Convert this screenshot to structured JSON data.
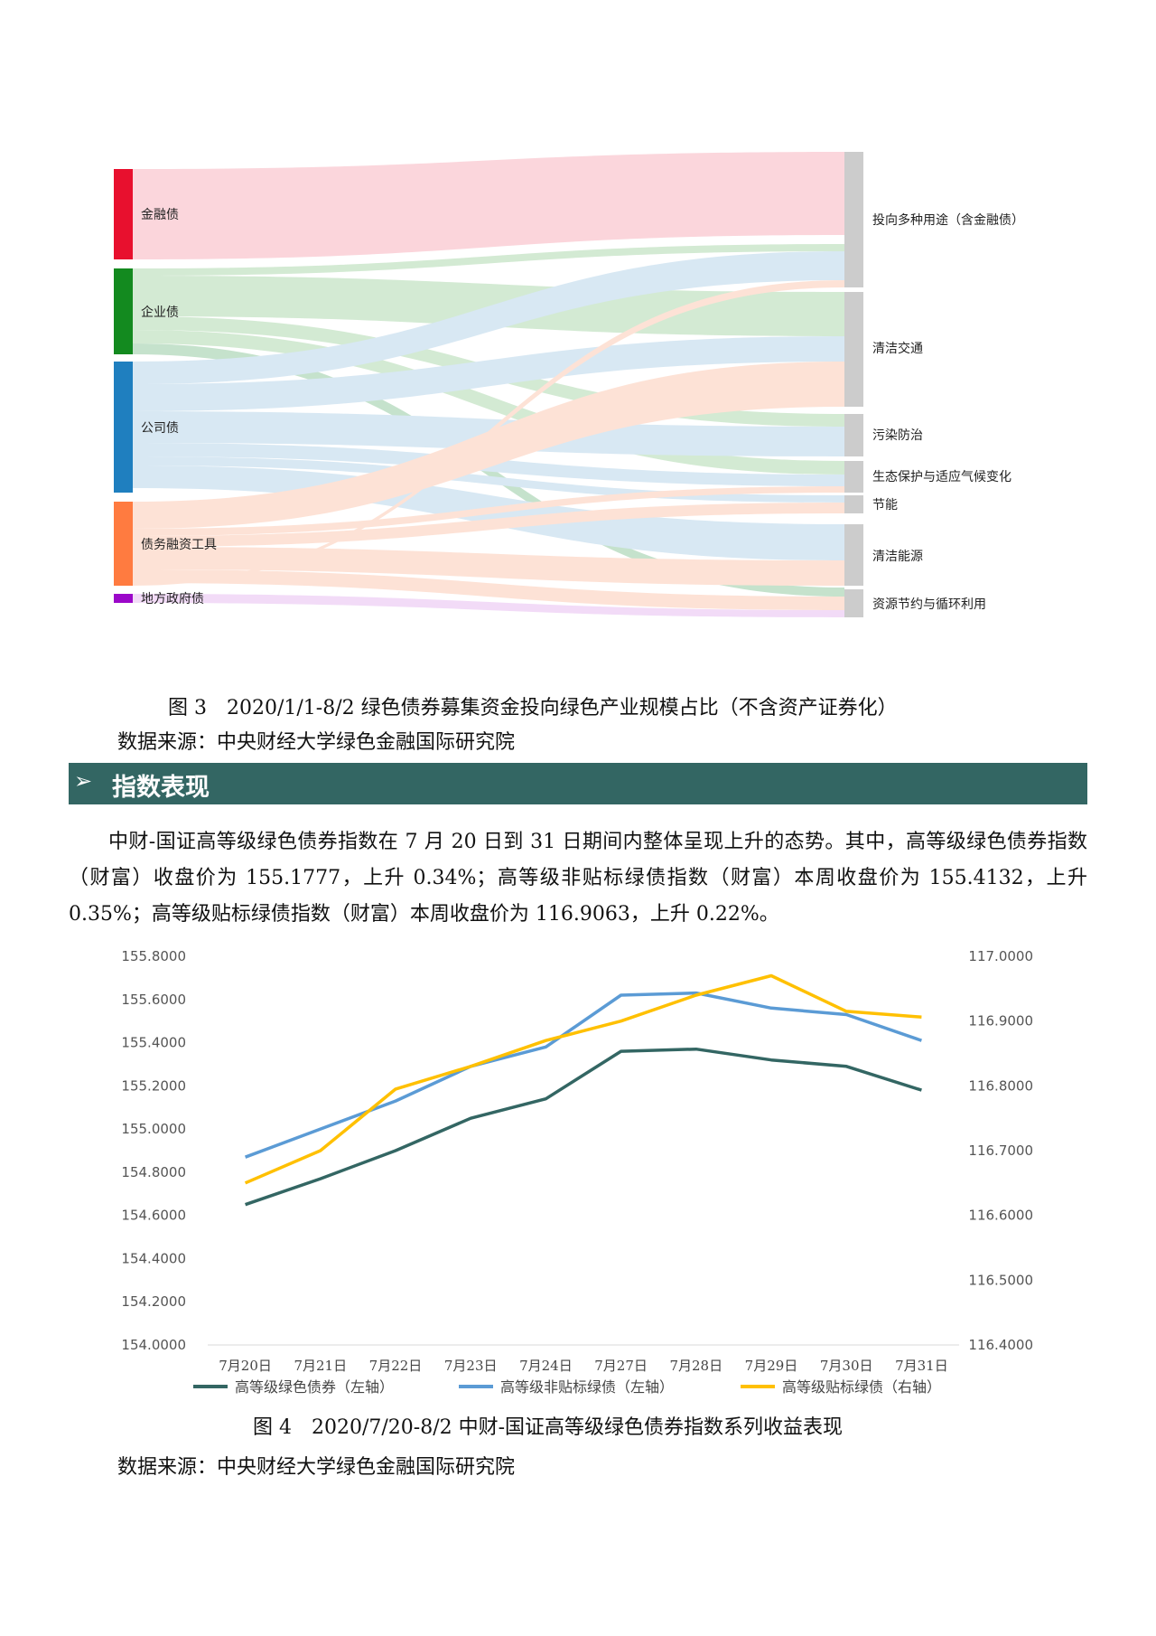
{
  "sankey": {
    "sources": [
      "金融债",
      "企业债",
      "公司债",
      "债务融资工具",
      "地方政府债"
    ],
    "targets": [
      "投向多种用途（含金融债）",
      "清洁交通",
      "污染防治",
      "生态保护与适应气候变化",
      "节能",
      "清洁能源",
      "资源节约与循环利用"
    ],
    "source_colors": [
      "#e8102e",
      "#138a1f",
      "#1f7fbf",
      "#ff7b40",
      "#9b08c9"
    ]
  },
  "fig3": {
    "caption": "图 3　2020/1/1-8/2 绿色债券募集资金投向绿色产业规模占比（不含资产证券化）",
    "source": "数据来源：中央财经大学绿色金融国际研究院"
  },
  "section": {
    "arrow": "➢",
    "title": "指数表现"
  },
  "paragraph": "中财-国证高等级绿色债券指数在 7 月 20 日到 31 日期间内整体呈现上升的态势。其中，高等级绿色债券指数（财富）收盘价为 155.1777，上升 0.34%；高等级非贴标绿债指数（财富）本周收盘价为 155.4132，上升 0.35%；高等级贴标绿债指数（财富）本周收盘价为 116.9063，上升 0.22%。",
  "chart_data": {
    "type": "line",
    "categories": [
      "7月20日",
      "7月21日",
      "7月22日",
      "7月23日",
      "7月24日",
      "7月27日",
      "7月28日",
      "7月29日",
      "7月30日",
      "7月31日"
    ],
    "y_left": {
      "ylim": [
        154.0,
        155.8
      ],
      "ticks": [
        "154.0000",
        "154.2000",
        "154.4000",
        "154.6000",
        "154.8000",
        "155.0000",
        "155.2000",
        "155.4000",
        "155.6000",
        "155.8000"
      ]
    },
    "y_right": {
      "ylim": [
        116.4,
        117.0
      ],
      "ticks": [
        "116.4000",
        "116.5000",
        "116.6000",
        "116.7000",
        "116.8000",
        "116.9000",
        "117.0000"
      ]
    },
    "series": [
      {
        "name": "高等级绿色债券（左轴）",
        "axis": "left",
        "color": "#336663",
        "values": [
          154.65,
          154.77,
          154.9,
          155.05,
          155.14,
          155.36,
          155.37,
          155.32,
          155.29,
          155.18
        ]
      },
      {
        "name": "高等级非贴标绿债（左轴）",
        "axis": "left",
        "color": "#5b9bd5",
        "values": [
          154.87,
          155.0,
          155.13,
          155.29,
          155.38,
          155.62,
          155.63,
          155.56,
          155.53,
          155.41
        ]
      },
      {
        "name": "高等级贴标绿债（右轴）",
        "axis": "right",
        "color": "#ffc000",
        "values": [
          116.65,
          116.7,
          116.795,
          116.83,
          116.87,
          116.9,
          116.94,
          116.97,
          116.915,
          116.9063
        ]
      }
    ]
  },
  "fig4": {
    "caption": "图 4　2020/7/20-8/2 中财-国证高等级绿色债券指数系列收益表现",
    "source": "数据来源：中央财经大学绿色金融国际研究院"
  }
}
